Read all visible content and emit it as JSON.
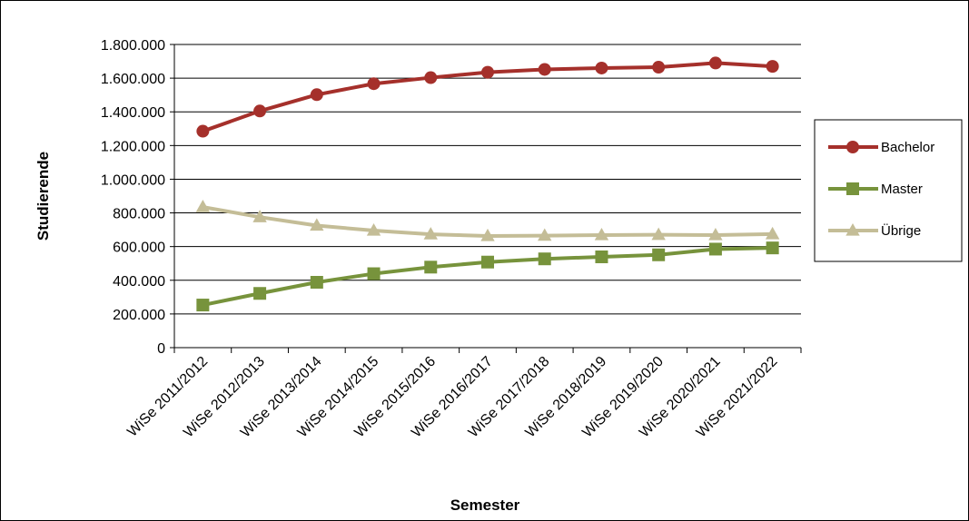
{
  "chart_data": {
    "type": "line",
    "categories": [
      "WiSe 2011/2012",
      "WiSe 2012/2013",
      "WiSe 2013/2014",
      "WiSe 2014/2015",
      "WiSe 2015/2016",
      "WiSe 2016/2017",
      "WiSe 2017/2018",
      "WiSe 2018/2019",
      "WiSe 2019/2020",
      "WiSe 2020/2021",
      "WiSe 2021/2022"
    ],
    "series": [
      {
        "name": "Bachelor",
        "color": "#A5302B",
        "marker": "circle",
        "values": [
          1285000,
          1405000,
          1502000,
          1567000,
          1603000,
          1635000,
          1652000,
          1660000,
          1665000,
          1690000,
          1670000
        ]
      },
      {
        "name": "Master",
        "color": "#77933C",
        "marker": "square",
        "values": [
          253000,
          322000,
          388000,
          439000,
          478000,
          508000,
          527000,
          539000,
          551000,
          585000,
          592000
        ]
      },
      {
        "name": "Übrige",
        "color": "#C4BD97",
        "marker": "triangle",
        "values": [
          835000,
          775000,
          725000,
          695000,
          673000,
          663000,
          665000,
          668000,
          670000,
          668000,
          674000
        ]
      }
    ],
    "title": "",
    "xlabel": "Semester",
    "ylabel": "Studierende",
    "ylim": [
      0,
      1800000
    ],
    "yticks": [
      "0",
      "200.000",
      "400.000",
      "600.000",
      "800.000",
      "1.000.000",
      "1.200.000",
      "1.400.000",
      "1.600.000",
      "1.800.000"
    ],
    "grid": true,
    "legend": "right"
  }
}
